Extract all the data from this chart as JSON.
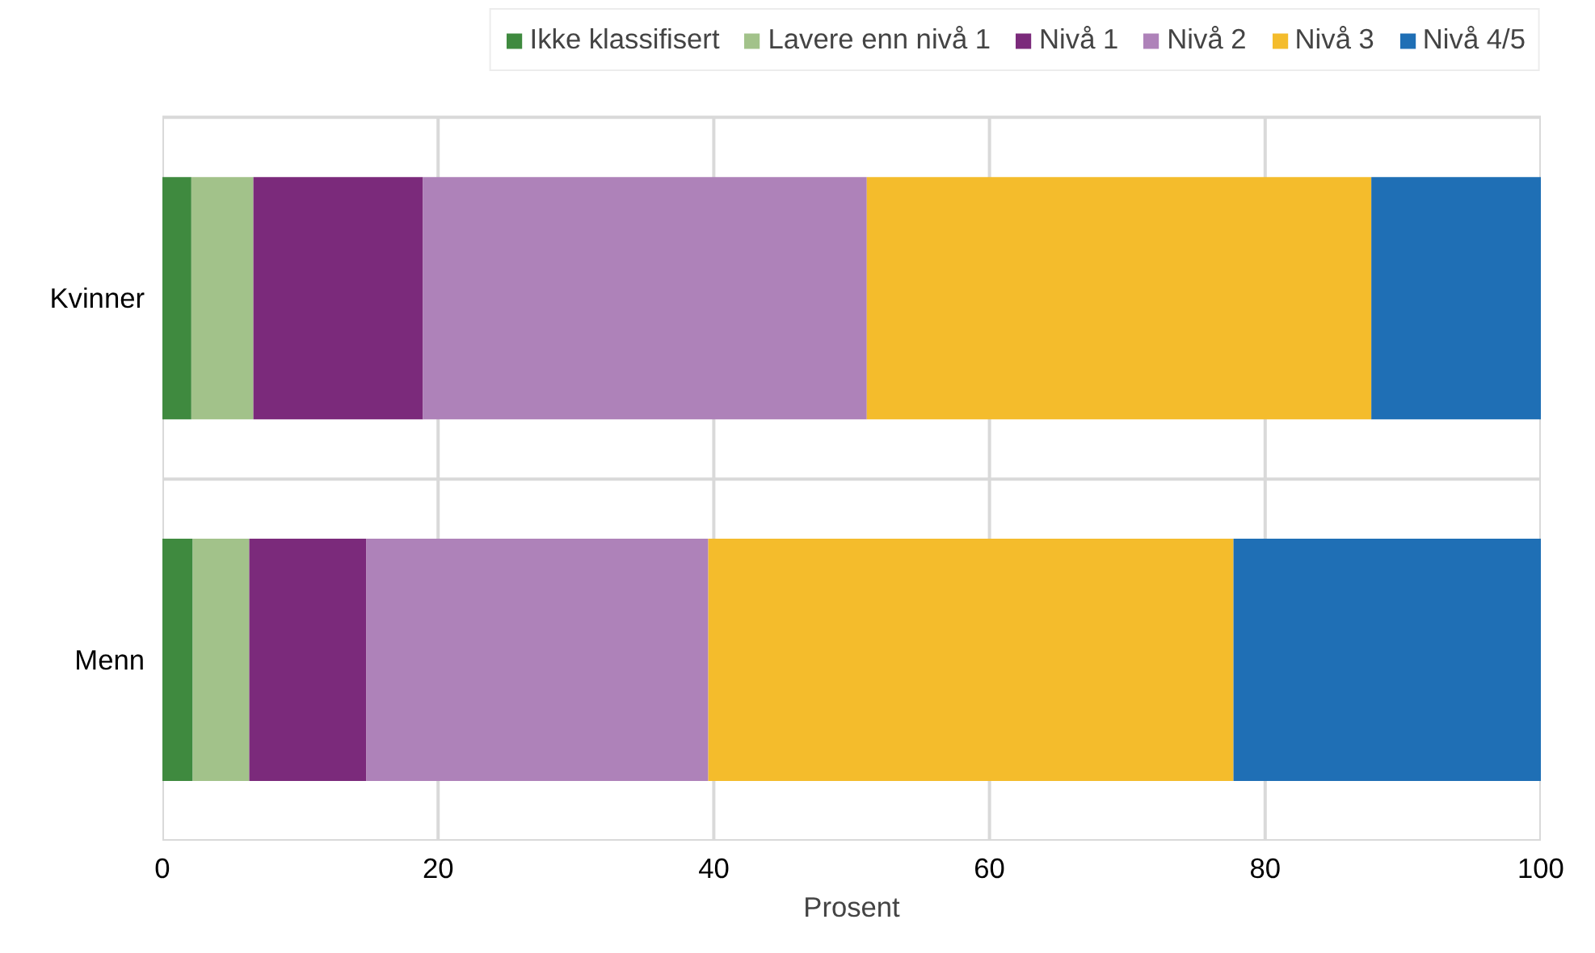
{
  "chart_data": {
    "type": "bar",
    "orientation": "horizontal",
    "stacked": true,
    "xlabel": "Prosent",
    "categories": [
      "Kvinner",
      "Menn"
    ],
    "series": [
      {
        "name": "Ikke klassifisert",
        "color": "#3f8a3f",
        "values": [
          2.1,
          2.2
        ]
      },
      {
        "name": "Lavere enn nivå 1",
        "color": "#a2c28a",
        "values": [
          4.5,
          4.1
        ]
      },
      {
        "name": "Nivå 1",
        "color": "#7b2a7b",
        "values": [
          12.3,
          8.5
        ]
      },
      {
        "name": "Nivå 2",
        "color": "#ae82b9",
        "values": [
          32.2,
          24.8
        ]
      },
      {
        "name": "Nivå 3",
        "color": "#f4bc2c",
        "values": [
          36.6,
          38.1
        ]
      },
      {
        "name": "Nivå 4/5",
        "color": "#1f6fb5",
        "values": [
          12.3,
          22.3
        ]
      }
    ],
    "xlim": [
      0,
      100
    ],
    "xticks": [
      0,
      20,
      40,
      60,
      80,
      100
    ],
    "grid": true,
    "legend": "top right"
  }
}
